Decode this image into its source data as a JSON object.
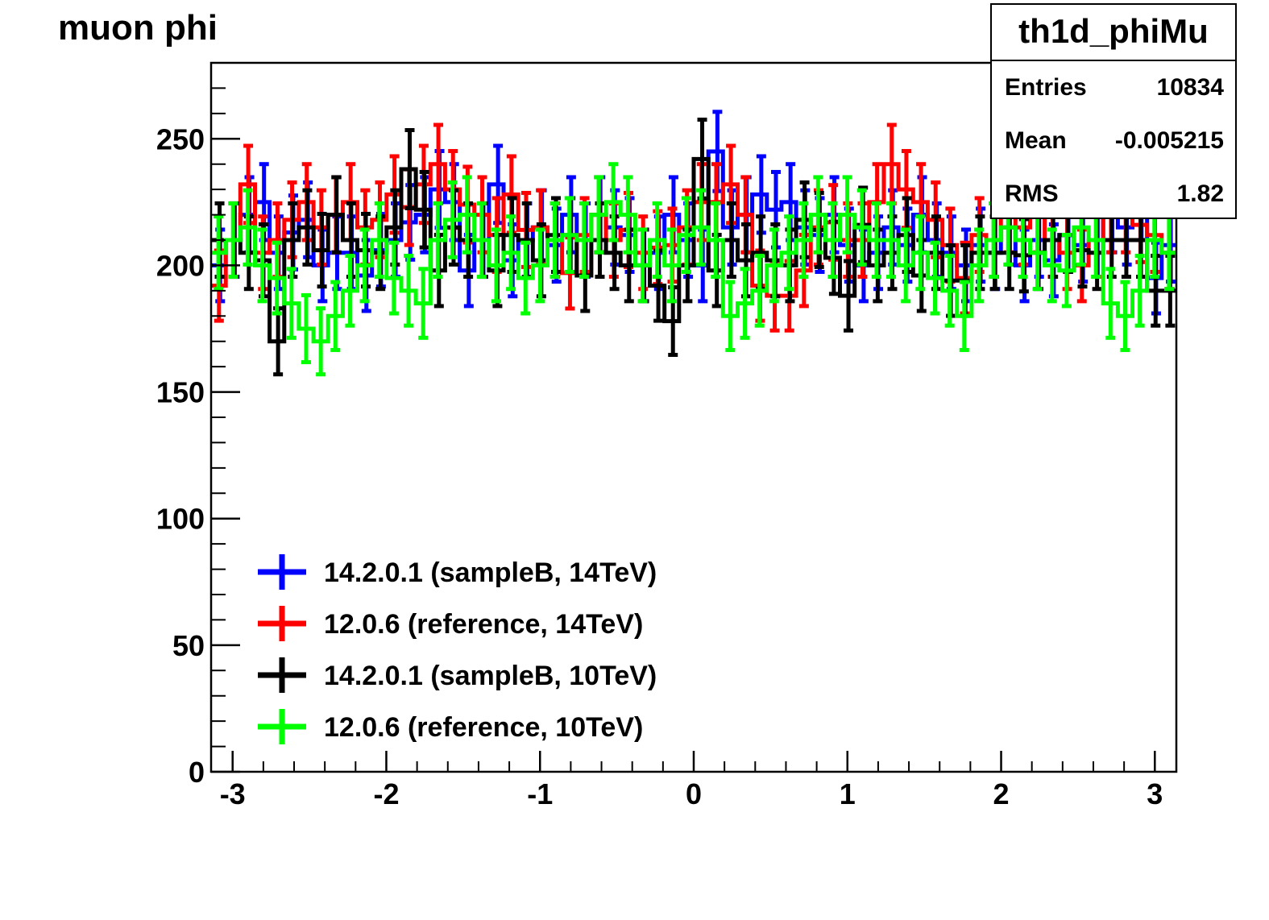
{
  "title": "muon phi",
  "stats": {
    "name": "th1d_phiMu",
    "rows": [
      {
        "label": "Entries",
        "value": "10834"
      },
      {
        "label": "Mean",
        "value": "-0.005215"
      },
      {
        "label": "RMS",
        "value": "1.82"
      }
    ]
  },
  "chart_data": {
    "type": "line",
    "xlim": [
      -3.14,
      3.14
    ],
    "ylim": [
      0,
      280
    ],
    "x_ticks": [
      "-3",
      "-2",
      "-1",
      "0",
      "1",
      "2",
      "3"
    ],
    "x_tick_values": [
      -3,
      -2,
      -1,
      0,
      1,
      2,
      3
    ],
    "y_ticks": [
      "0",
      "50",
      "100",
      "150",
      "200",
      "250"
    ],
    "y_tick_values": [
      0,
      50,
      100,
      150,
      200,
      250
    ],
    "grid": false,
    "legend_position": "bottom-left",
    "series": [
      {
        "name": "14.2.0.1 (sampleB, 14TeV)",
        "color": "#0000ff",
        "error_bar_offset": 0.12,
        "values": [
          200,
          210,
          220,
          225,
          205,
          213,
          218,
          200,
          205,
          205,
          196,
          206,
          210,
          217,
          220,
          230,
          225,
          198,
          210,
          232,
          202,
          210,
          215,
          208,
          220,
          210,
          220,
          215,
          212,
          200,
          205,
          220,
          210,
          200,
          245,
          215,
          220,
          228,
          222,
          225,
          215,
          212,
          220,
          208,
          200,
          205,
          215,
          208,
          220,
          210,
          205,
          200,
          208,
          205,
          215,
          200,
          210,
          202,
          212,
          208,
          210,
          220,
          215,
          225,
          195,
          208
        ]
      },
      {
        "name": "12.0.6 (reference, 14TeV)",
        "color": "#ff0000",
        "error_bar_offset": 0.04,
        "values": [
          192,
          210,
          232,
          205,
          210,
          218,
          225,
          215,
          220,
          225,
          215,
          218,
          228,
          223,
          232,
          240,
          230,
          224,
          220,
          212,
          228,
          214,
          215,
          210,
          197,
          212,
          220,
          210,
          214,
          205,
          207,
          208,
          215,
          225,
          225,
          232,
          220,
          192,
          188,
          188,
          198,
          215,
          217,
          210,
          210,
          225,
          240,
          230,
          225,
          218,
          208,
          195,
          212,
          210,
          220,
          215,
          220,
          210,
          205,
          200,
          210,
          220,
          220,
          216,
          212,
          205
        ]
      },
      {
        "name": "14.2.0.1 (sampleB, 10TeV)",
        "color": "#000000",
        "error_bar_offset": 0.08,
        "values": [
          210,
          210,
          205,
          202,
          170,
          210,
          215,
          206,
          220,
          210,
          206,
          205,
          215,
          238,
          222,
          198,
          215,
          210,
          210,
          198,
          212,
          210,
          202,
          212,
          212,
          196,
          210,
          205,
          200,
          200,
          192,
          178,
          200,
          242,
          198,
          210,
          202,
          205,
          202,
          200,
          218,
          214,
          203,
          188,
          216,
          200,
          205,
          212,
          196,
          205,
          194,
          194,
          205,
          205,
          205,
          204,
          205,
          210,
          212,
          206,
          205,
          210,
          210,
          210,
          190,
          190
        ]
      },
      {
        "name": "12.0.6 (reference, 10TeV)",
        "color": "#00ff00",
        "error_bar_offset": 0.0,
        "values": [
          205,
          210,
          215,
          200,
          195,
          185,
          175,
          170,
          180,
          190,
          200,
          210,
          195,
          190,
          185,
          210,
          218,
          220,
          210,
          200,
          205,
          195,
          200,
          210,
          212,
          210,
          220,
          225,
          220,
          200,
          210,
          200,
          212,
          215,
          210,
          180,
          185,
          190,
          200,
          205,
          210,
          220,
          210,
          220,
          215,
          210,
          210,
          200,
          205,
          195,
          190,
          180,
          200,
          210,
          215,
          210,
          205,
          200,
          198,
          215,
          210,
          185,
          180,
          190,
          210,
          205
        ]
      }
    ]
  }
}
